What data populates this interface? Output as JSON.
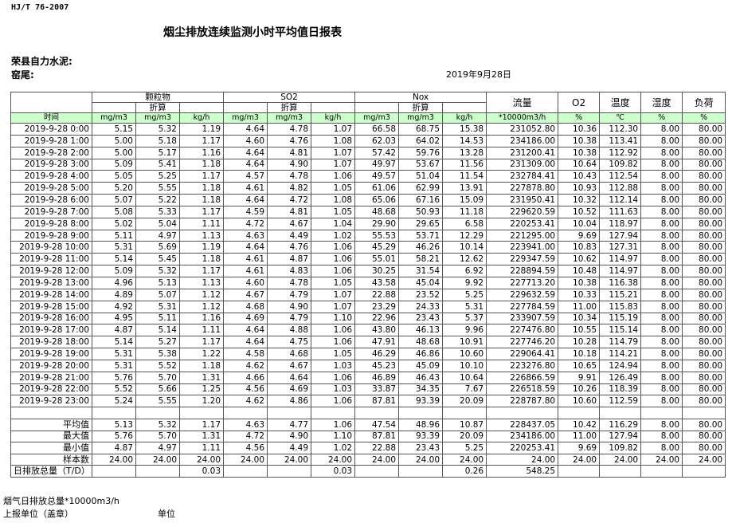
{
  "header": {
    "standard": "HJ/T  76-2007",
    "title": "烟尘排放连续监测小时平均值日报表",
    "company": "荣县自力水泥:",
    "kiln": "窑尾:",
    "date": "2019年9月28日"
  },
  "table": {
    "time_label": "时间",
    "group_headers": [
      "颗粒物",
      "SO2",
      "Nox"
    ],
    "converted_label": "折算",
    "column_labels": [
      "流量",
      "O2",
      "温度",
      "湿度",
      "负荷"
    ],
    "units": [
      "mg/m3",
      "mg/m3",
      "kg/h",
      "mg/m3",
      "mg/m3",
      "kg/h",
      "mg/m3",
      "mg/m3",
      "kg/h",
      "*10000m3/h",
      "%",
      "℃",
      "%",
      "%"
    ],
    "rows": [
      [
        "2019-9-28 0:00",
        "5.15",
        "5.32",
        "1.19",
        "4.64",
        "4.78",
        "1.07",
        "66.58",
        "68.75",
        "15.38",
        "231052.80",
        "10.36",
        "112.30",
        "8.00",
        "80.00"
      ],
      [
        "2019-9-28 1:00",
        "5.00",
        "5.18",
        "1.17",
        "4.60",
        "4.76",
        "1.08",
        "62.03",
        "64.02",
        "14.53",
        "234186.00",
        "10.38",
        "113.41",
        "8.00",
        "80.00"
      ],
      [
        "2019-9-28 2:00",
        "5.00",
        "5.17",
        "1.16",
        "4.64",
        "4.81",
        "1.07",
        "57.42",
        "59.76",
        "13.28",
        "231200.41",
        "10.38",
        "112.92",
        "8.00",
        "80.00"
      ],
      [
        "2019-9-28 3:00",
        "5.09",
        "5.41",
        "1.18",
        "4.64",
        "4.90",
        "1.07",
        "49.97",
        "53.67",
        "11.56",
        "231309.00",
        "10.64",
        "109.82",
        "8.00",
        "80.00"
      ],
      [
        "2019-9-28 4:00",
        "5.05",
        "5.25",
        "1.17",
        "4.57",
        "4.78",
        "1.06",
        "49.57",
        "51.04",
        "11.54",
        "232784.41",
        "10.43",
        "112.54",
        "8.00",
        "80.00"
      ],
      [
        "2019-9-28 5:00",
        "5.20",
        "5.55",
        "1.18",
        "4.61",
        "4.82",
        "1.05",
        "61.06",
        "62.99",
        "13.91",
        "227878.80",
        "10.93",
        "112.88",
        "8.00",
        "80.00"
      ],
      [
        "2019-9-28 6:00",
        "5.07",
        "5.22",
        "1.18",
        "4.64",
        "4.72",
        "1.08",
        "65.06",
        "67.16",
        "15.09",
        "231950.41",
        "10.32",
        "112.14",
        "8.00",
        "80.00"
      ],
      [
        "2019-9-28 7:00",
        "5.08",
        "5.33",
        "1.17",
        "4.59",
        "4.81",
        "1.05",
        "48.68",
        "50.93",
        "11.18",
        "229620.59",
        "10.52",
        "111.63",
        "8.00",
        "80.00"
      ],
      [
        "2019-9-28 8:00",
        "5.02",
        "5.04",
        "1.11",
        "4.72",
        "4.67",
        "1.04",
        "29.90",
        "29.65",
        "6.58",
        "220253.41",
        "10.04",
        "118.97",
        "8.00",
        "80.00"
      ],
      [
        "2019-9-28 9:00",
        "5.11",
        "4.97",
        "1.13",
        "4.63",
        "4.49",
        "1.02",
        "55.53",
        "53.71",
        "12.29",
        "221295.00",
        "9.69",
        "127.94",
        "8.00",
        "80.00"
      ],
      [
        "2019-9-28 10:00",
        "5.31",
        "5.69",
        "1.19",
        "4.64",
        "4.76",
        "1.06",
        "45.29",
        "46.26",
        "10.14",
        "223941.00",
        "10.83",
        "127.31",
        "8.00",
        "80.00"
      ],
      [
        "2019-9-28 11:00",
        "5.14",
        "5.45",
        "1.18",
        "4.61",
        "4.87",
        "1.06",
        "55.01",
        "58.21",
        "12.62",
        "229347.59",
        "10.62",
        "114.97",
        "8.00",
        "80.00"
      ],
      [
        "2019-9-28 12:00",
        "5.09",
        "5.32",
        "1.17",
        "4.61",
        "4.83",
        "1.06",
        "30.25",
        "31.54",
        "6.92",
        "228894.59",
        "10.48",
        "114.97",
        "8.00",
        "80.00"
      ],
      [
        "2019-9-28 13:00",
        "4.96",
        "5.13",
        "1.13",
        "4.60",
        "4.78",
        "1.05",
        "43.58",
        "45.04",
        "9.92",
        "227713.20",
        "10.38",
        "116.38",
        "8.00",
        "80.00"
      ],
      [
        "2019-9-28 14:00",
        "4.89",
        "5.07",
        "1.12",
        "4.67",
        "4.79",
        "1.07",
        "22.88",
        "23.52",
        "5.25",
        "229632.59",
        "10.33",
        "115.21",
        "8.00",
        "80.00"
      ],
      [
        "2019-9-28 15:00",
        "4.92",
        "5.31",
        "1.12",
        "4.68",
        "4.90",
        "1.07",
        "23.29",
        "24.33",
        "5.31",
        "227784.59",
        "11.00",
        "115.83",
        "8.00",
        "80.00"
      ],
      [
        "2019-9-28 16:00",
        "4.95",
        "5.11",
        "1.16",
        "4.69",
        "4.79",
        "1.10",
        "22.96",
        "23.43",
        "5.37",
        "233907.59",
        "10.34",
        "115.19",
        "8.00",
        "80.00"
      ],
      [
        "2019-9-28 17:00",
        "4.87",
        "5.14",
        "1.11",
        "4.64",
        "4.88",
        "1.06",
        "43.80",
        "46.13",
        "9.96",
        "227476.80",
        "10.55",
        "115.14",
        "8.00",
        "80.00"
      ],
      [
        "2019-9-28 18:00",
        "5.14",
        "5.27",
        "1.17",
        "4.64",
        "4.75",
        "1.06",
        "47.91",
        "48.68",
        "10.91",
        "227746.20",
        "10.28",
        "114.79",
        "8.00",
        "80.00"
      ],
      [
        "2019-9-28 19:00",
        "5.31",
        "5.38",
        "1.22",
        "4.58",
        "4.68",
        "1.05",
        "46.29",
        "46.86",
        "10.60",
        "229064.41",
        "10.18",
        "114.21",
        "8.00",
        "80.00"
      ],
      [
        "2019-9-28 20:00",
        "5.31",
        "5.52",
        "1.18",
        "4.62",
        "4.67",
        "1.03",
        "45.23",
        "45.09",
        "10.10",
        "223276.80",
        "10.65",
        "124.94",
        "8.00",
        "80.00"
      ],
      [
        "2019-9-28 21:00",
        "5.76",
        "5.70",
        "1.31",
        "4.66",
        "4.64",
        "1.06",
        "46.89",
        "46.43",
        "10.64",
        "226866.59",
        "9.91",
        "126.49",
        "8.00",
        "80.00"
      ],
      [
        "2019-9-28 22:00",
        "5.52",
        "5.66",
        "1.25",
        "4.56",
        "4.69",
        "1.03",
        "33.87",
        "34.35",
        "7.67",
        "226518.59",
        "10.26",
        "118.39",
        "8.00",
        "80.00"
      ],
      [
        "2019-9-28 23:00",
        "5.24",
        "5.55",
        "1.20",
        "4.62",
        "4.86",
        "1.06",
        "87.81",
        "93.39",
        "20.09",
        "228787.80",
        "10.60",
        "112.59",
        "8.00",
        "80.00"
      ]
    ],
    "summary": [
      [
        "平均值",
        "5.13",
        "5.32",
        "1.17",
        "4.63",
        "4.77",
        "1.06",
        "47.54",
        "48.96",
        "10.87",
        "228437.05",
        "10.42",
        "116.29",
        "8.00",
        "80.00"
      ],
      [
        "最大值",
        "5.76",
        "5.70",
        "1.31",
        "4.72",
        "4.90",
        "1.10",
        "87.81",
        "93.39",
        "20.09",
        "234186.00",
        "11.00",
        "127.94",
        "8.00",
        "80.00"
      ],
      [
        "最小值",
        "4.87",
        "4.97",
        "1.11",
        "4.56",
        "4.49",
        "1.02",
        "22.88",
        "23.43",
        "5.25",
        "220253.41",
        "9.69",
        "109.82",
        "8.00",
        "80.00"
      ],
      [
        "样本数",
        "24.00",
        "24.00",
        "24.00",
        "24.00",
        "24.00",
        "24.00",
        "24.00",
        "24.00",
        "24.00",
        "24.00",
        "24.00",
        "24.00",
        "24.00",
        "24.00"
      ]
    ],
    "total": [
      "日排放总量（T/D）",
      null,
      null,
      "0.03",
      null,
      null,
      "0.03",
      null,
      null,
      "0.26",
      "548.25",
      null,
      null,
      null,
      null
    ]
  },
  "footer": {
    "flue_total": "烟气日排放总量*10000m3/h",
    "reporter": "上报单位（盖章）",
    "unit": "单位"
  }
}
